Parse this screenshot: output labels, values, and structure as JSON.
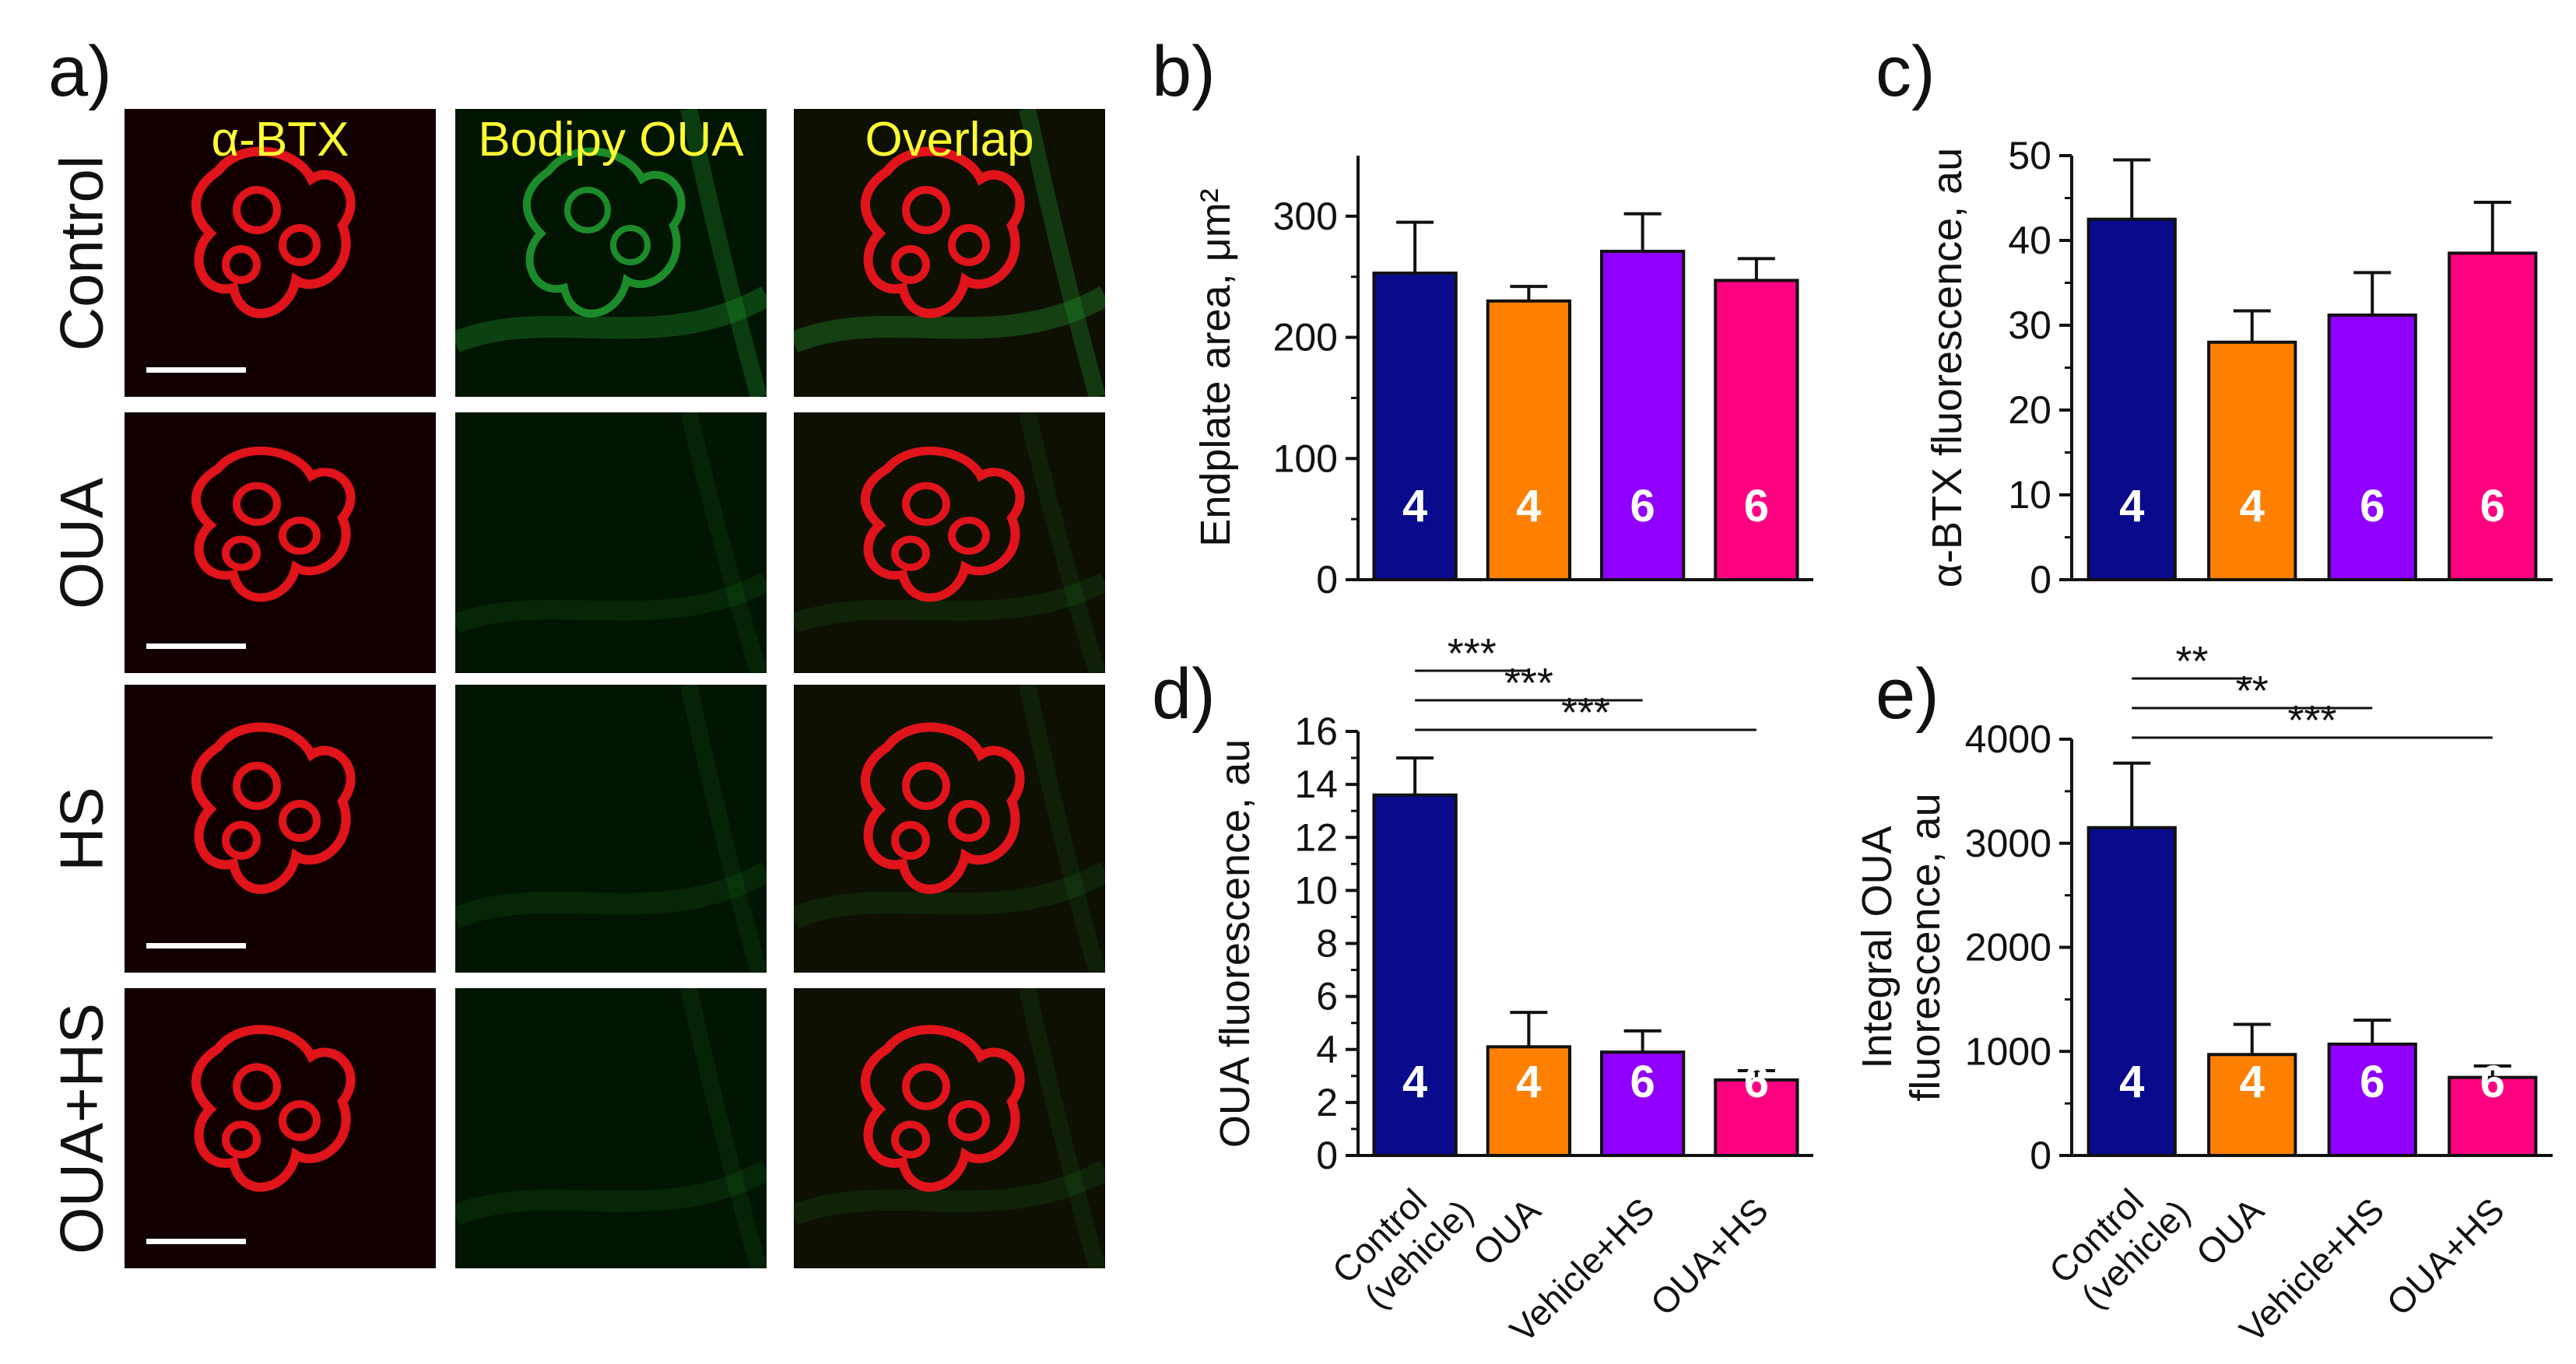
{
  "panel_a": {
    "letter": "a)",
    "columns": [
      "α-BTX",
      "Bodipy OUA",
      "Overlap"
    ],
    "rows": [
      "Control",
      "OUA",
      "HS",
      "OUA+HS"
    ],
    "colors": {
      "red": "#e0141a",
      "green": "#22aa33",
      "label": "#ffff33"
    }
  },
  "chart_data": [
    {
      "id": "b",
      "letter": "b)",
      "type": "bar",
      "ylabel": "Endplate area, μm²",
      "ylim": [
        0,
        350
      ],
      "yticks": [
        0,
        100,
        200,
        300
      ],
      "categories": [
        "Control (vehicle)",
        "OUA",
        "Vehicle+HS",
        "OUA+HS"
      ],
      "show_xlabels": false,
      "values": [
        253,
        230,
        271,
        247
      ],
      "errors": [
        42,
        12,
        31,
        18
      ],
      "n": [
        "4",
        "4",
        "6",
        "6"
      ],
      "colors": [
        "#0a0a8c",
        "#ff8000",
        "#8f00ff",
        "#ff0080"
      ],
      "significance": []
    },
    {
      "id": "c",
      "letter": "c)",
      "type": "bar",
      "ylabel": "α-BTX fluorescence, au",
      "ylim": [
        0,
        50
      ],
      "yticks": [
        0,
        10,
        20,
        30,
        40,
        50
      ],
      "categories": [
        "Control (vehicle)",
        "OUA",
        "Vehicle+HS",
        "OUA+HS"
      ],
      "show_xlabels": false,
      "values": [
        42.5,
        28,
        31.2,
        38.5
      ],
      "errors": [
        7,
        3.7,
        5,
        6
      ],
      "n": [
        "4",
        "4",
        "6",
        "6"
      ],
      "colors": [
        "#0a0a8c",
        "#ff8000",
        "#8f00ff",
        "#ff0080"
      ],
      "significance": []
    },
    {
      "id": "d",
      "letter": "d)",
      "type": "bar",
      "ylabel": "OUA fluorescence, au",
      "ylim": [
        0,
        16
      ],
      "yticks": [
        0,
        2,
        4,
        6,
        8,
        10,
        12,
        14,
        16
      ],
      "categories": [
        "Control (vehicle)",
        "OUA",
        "Vehicle+HS",
        "OUA+HS"
      ],
      "show_xlabels": true,
      "values": [
        13.6,
        4.1,
        3.9,
        2.85
      ],
      "errors": [
        1.4,
        1.3,
        0.8,
        0.35
      ],
      "n": [
        "4",
        "4",
        "6",
        "6"
      ],
      "colors": [
        "#0a0a8c",
        "#ff8000",
        "#8f00ff",
        "#ff0080"
      ],
      "significance": [
        {
          "from": 0,
          "to": 1,
          "label": "***"
        },
        {
          "from": 0,
          "to": 2,
          "label": "***"
        },
        {
          "from": 0,
          "to": 3,
          "label": "***"
        }
      ]
    },
    {
      "id": "e",
      "letter": "e)",
      "type": "bar",
      "ylabel": [
        "Integral OUA",
        "fluorescence, au"
      ],
      "ylim": [
        0,
        4000
      ],
      "yticks": [
        0,
        1000,
        2000,
        3000,
        4000
      ],
      "categories": [
        "Control (vehicle)",
        "OUA",
        "Vehicle+HS",
        "OUA+HS"
      ],
      "show_xlabels": true,
      "values": [
        3150,
        970,
        1070,
        750
      ],
      "errors": [
        620,
        290,
        230,
        110
      ],
      "n": [
        "4",
        "4",
        "6",
        "6"
      ],
      "colors": [
        "#0a0a8c",
        "#ff8000",
        "#8f00ff",
        "#ff0080"
      ],
      "significance": [
        {
          "from": 0,
          "to": 1,
          "label": "**"
        },
        {
          "from": 0,
          "to": 2,
          "label": "**"
        },
        {
          "from": 0,
          "to": 3,
          "label": "***"
        }
      ]
    }
  ]
}
